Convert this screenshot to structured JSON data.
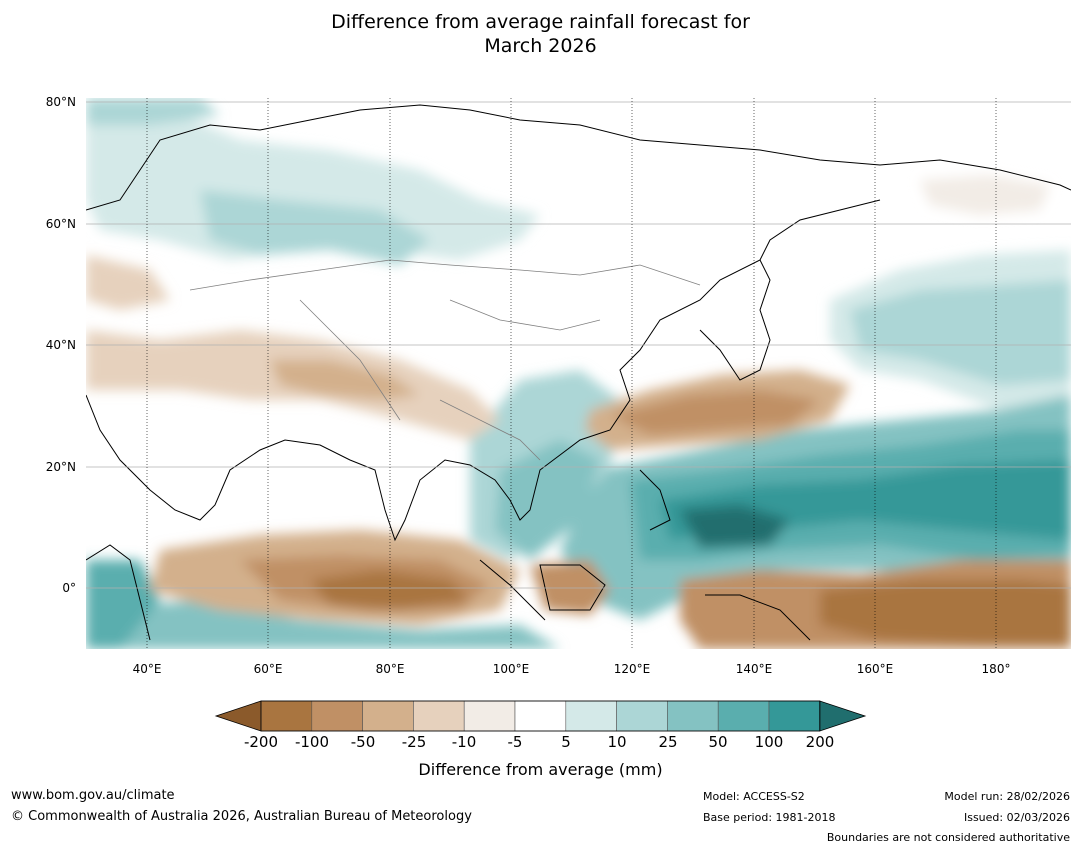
{
  "title": {
    "line1": "Difference from average rainfall forecast for",
    "line2": "March 2026"
  },
  "map": {
    "lat_labels": [
      "80°N",
      "60°N",
      "40°N",
      "20°N",
      "0°"
    ],
    "lon_labels": [
      "40°E",
      "60°E",
      "80°E",
      "100°E",
      "120°E",
      "140°E",
      "160°E",
      "180°"
    ],
    "extent": {
      "lon": [
        30,
        192
      ],
      "lat": [
        -10,
        81
      ]
    }
  },
  "legend": {
    "ticks": [
      "-200",
      "-100",
      "-50",
      "-25",
      "-10",
      "-5",
      "5",
      "10",
      "25",
      "50",
      "100",
      "200"
    ],
    "colors": [
      "#8b5a2b",
      "#a97540",
      "#c09065",
      "#d3b08c",
      "#e6d1bd",
      "#f2ece6",
      "#ffffff",
      "#d4e9e8",
      "#acd6d6",
      "#84c2c2",
      "#5aaeae",
      "#349898",
      "#206e6e"
    ],
    "label": "Difference from average (mm)"
  },
  "footer": {
    "website": "www.bom.gov.au/climate",
    "copyright": "© Commonwealth of Australia 2026, Australian Bureau of Meteorology",
    "model": "Model: ACCESS-S2",
    "base_period": "Base period: 1981-2018",
    "model_run": "Model run: 28/02/2026",
    "issued": "Issued: 02/03/2026",
    "disclaimer": "Boundaries are not considered authoritative"
  }
}
